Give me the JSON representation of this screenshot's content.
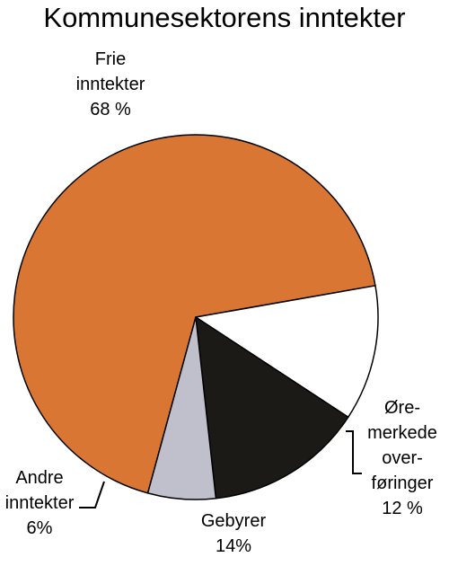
{
  "chart_data": {
    "type": "pie",
    "title": "Kommunesektorens inntekter",
    "slices": [
      {
        "name": "Frie inntekter",
        "value": 68,
        "color": "#d97633",
        "label_lines": [
          "Frie",
          "inntekter",
          "68 %"
        ]
      },
      {
        "name": "Øremerkede overføringer",
        "value": 12,
        "color": "#ffffff",
        "label_lines": [
          "Øre-",
          "merkede",
          "over-",
          "føringer",
          "12 %"
        ]
      },
      {
        "name": "Gebyrer",
        "value": 14,
        "color": "#1c1a17",
        "label_lines": [
          "Gebyrer",
          "14%"
        ]
      },
      {
        "name": "Andre inntekter",
        "value": 6,
        "color": "#c0c0cc",
        "label_lines": [
          "Andre",
          "inntekter",
          "6%"
        ]
      }
    ]
  }
}
